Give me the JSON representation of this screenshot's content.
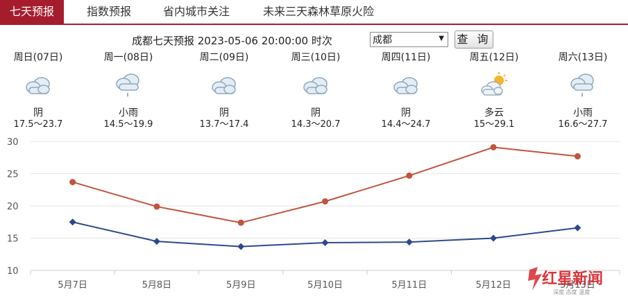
{
  "tabs": [
    {
      "label": "七天预报",
      "active": true
    },
    {
      "label": "指数预报",
      "active": false
    },
    {
      "label": "省内城市关注",
      "active": false
    },
    {
      "label": "未来三天森林草原火险",
      "active": false
    }
  ],
  "query": {
    "title_text": "成都七天预报 2023-05-06 20:00:00 时次",
    "selected_city": "成都",
    "button_label": "查 询"
  },
  "days": [
    {
      "name": "周日(07日)",
      "condition": "阴",
      "range": "17.5～23.7",
      "icon": "overcast-cloud-icon"
    },
    {
      "name": "周一(08日)",
      "condition": "小雨",
      "range": "14.5～19.9",
      "icon": "light-rain-icon"
    },
    {
      "name": "周二(09日)",
      "condition": "阴",
      "range": "13.7～17.4",
      "icon": "overcast-cloud-icon"
    },
    {
      "name": "周三(10日)",
      "condition": "阴",
      "range": "14.3～20.7",
      "icon": "overcast-cloud-icon"
    },
    {
      "name": "周四(11日)",
      "condition": "阴",
      "range": "14.4～24.7",
      "icon": "overcast-cloud-icon"
    },
    {
      "name": "周五(12日)",
      "condition": "多云",
      "range": "15～29.1",
      "icon": "partly-cloudy-icon"
    },
    {
      "name": "周六(13日)",
      "condition": "小雨",
      "range": "16.6～27.7",
      "icon": "light-rain-icon"
    }
  ],
  "chart_data": {
    "type": "line",
    "categories": [
      "5月7日",
      "5月8日",
      "5月9日",
      "5月10日",
      "5月11日",
      "5月12日",
      "5月13日"
    ],
    "series": [
      {
        "values": [
          23.7,
          19.9,
          17.4,
          20.7,
          24.7,
          29.1,
          27.7
        ],
        "color": "#c0543c",
        "marker": "circle"
      },
      {
        "values": [
          17.5,
          14.5,
          13.7,
          14.3,
          14.4,
          15.0,
          16.6
        ],
        "color": "#2c4a8a",
        "marker": "diamond"
      }
    ],
    "ylim": [
      10,
      30
    ],
    "yticks": [
      10,
      15,
      20,
      25,
      30
    ],
    "grid": true
  },
  "watermark": {
    "brand": "红星新闻",
    "tagline": "深度 态度 温度"
  },
  "colors": {
    "accent": "#a51d2d",
    "high": "#c0543c",
    "low": "#2c4a8a"
  }
}
